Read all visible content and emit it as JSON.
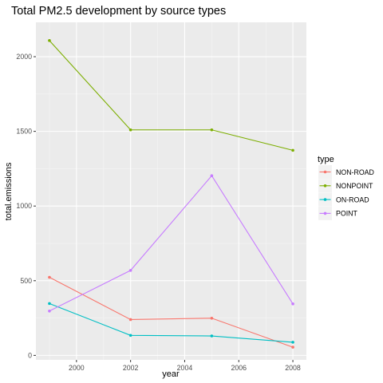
{
  "chart_data": {
    "type": "line",
    "title": "Total PM2.5 development by source types",
    "xlabel": "year",
    "ylabel": "total.emissions",
    "x": [
      1999,
      2002,
      2005,
      2008
    ],
    "xlim": [
      1998.5,
      2008.5
    ],
    "ylim": [
      -30,
      2230
    ],
    "x_ticks": [
      2000,
      2002,
      2004,
      2006,
      2008
    ],
    "y_ticks": [
      0,
      500,
      1000,
      1500,
      2000
    ],
    "grid": true,
    "background": "#ebebeb",
    "legend": {
      "title": "type",
      "position": "right"
    },
    "series": [
      {
        "name": "NON-ROAD",
        "color": "#f8766d",
        "values": [
          523,
          240,
          249,
          55
        ]
      },
      {
        "name": "NONPOINT",
        "color": "#7cae00",
        "values": [
          2108,
          1510,
          1510,
          1373
        ]
      },
      {
        "name": "ON-ROAD",
        "color": "#00bfc4",
        "values": [
          347,
          134,
          130,
          88
        ]
      },
      {
        "name": "POINT",
        "color": "#c77cff",
        "values": [
          297,
          569,
          1203,
          345
        ]
      }
    ]
  }
}
